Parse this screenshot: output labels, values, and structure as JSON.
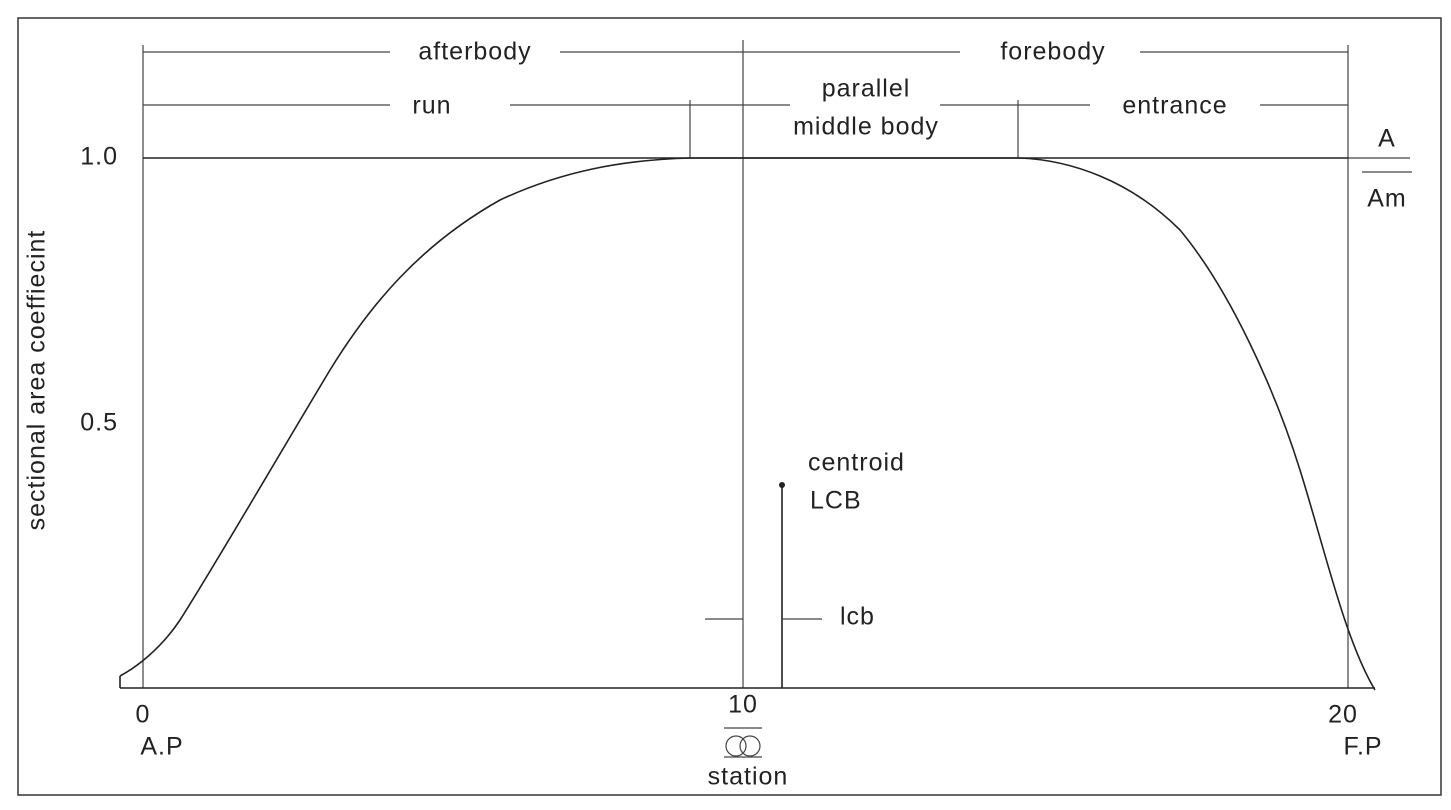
{
  "labels": {
    "afterbody": "afterbody",
    "forebody": "forebody",
    "run": "run",
    "parallel": "parallel",
    "middle_body": "middle body",
    "entrance": "entrance"
  },
  "y_axis": {
    "title": "sectional area coeffiecint",
    "ticks": [
      "1.0",
      "0.5"
    ]
  },
  "ratio": {
    "numerator": "A",
    "denominator": "Am"
  },
  "centroid": {
    "label": "centroid",
    "name": "LCB",
    "distance": "lcb"
  },
  "x_axis": {
    "ticks": [
      "0",
      "10",
      "20"
    ],
    "aft": "A.P",
    "fore": "F.P",
    "title": "station"
  }
}
